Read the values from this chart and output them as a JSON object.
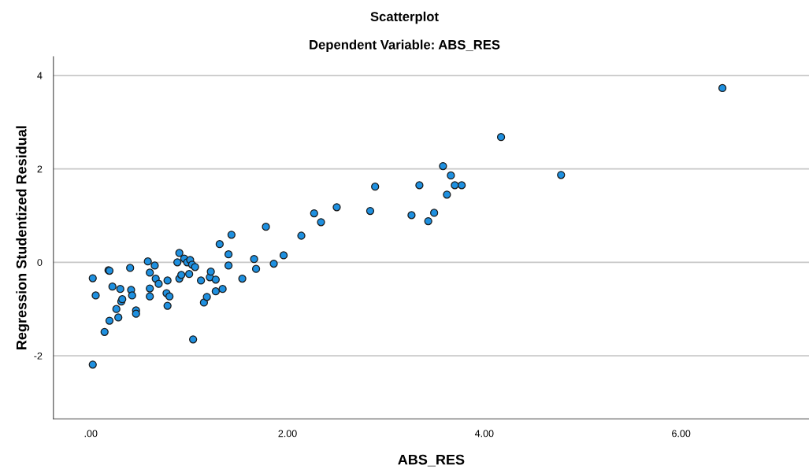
{
  "chart_data": {
    "type": "scatter",
    "title": "Scatterplot",
    "subtitle": "Dependent Variable: ABS_RES",
    "xlabel": "ABS_RES",
    "ylabel": "Regression Studentized Residual",
    "marker": "circle",
    "grid": "y",
    "xlim": [
      -0.38,
      7.3
    ],
    "ylim": [
      -3.35,
      4.4
    ],
    "xticks": [
      {
        "value": 0,
        "label": ".00"
      },
      {
        "value": 2,
        "label": "2.00"
      },
      {
        "value": 4,
        "label": "4.00"
      },
      {
        "value": 6,
        "label": "6.00"
      }
    ],
    "yticks": [
      -2,
      0,
      2,
      4
    ],
    "series": [
      {
        "color": "#1e90e0",
        "x": [
          0.02,
          0.02,
          0.05,
          0.14,
          0.19,
          0.18,
          0.19,
          0.22,
          0.26,
          0.28,
          0.3,
          0.31,
          0.32,
          0.4,
          0.41,
          0.42,
          0.46,
          0.46,
          0.58,
          0.6,
          0.6,
          0.6,
          0.65,
          0.66,
          0.69,
          0.77,
          0.78,
          0.78,
          0.8,
          0.88,
          0.9,
          0.9,
          0.92,
          0.95,
          0.98,
          1.0,
          1.01,
          1.03,
          1.06,
          1.04,
          1.12,
          1.15,
          1.18,
          1.21,
          1.22,
          1.27,
          1.27,
          1.31,
          1.34,
          1.4,
          1.4,
          1.43,
          1.54,
          1.66,
          1.68,
          1.78,
          1.86,
          1.96,
          2.14,
          2.27,
          2.34,
          2.5,
          2.84,
          2.89,
          3.26,
          3.34,
          3.43,
          3.49,
          3.58,
          3.62,
          3.66,
          3.7,
          3.77,
          4.17,
          4.78,
          6.42
        ],
        "values": [
          -2.19,
          -0.34,
          -0.71,
          -1.49,
          -1.25,
          -0.17,
          -0.18,
          -0.52,
          -1.0,
          -1.18,
          -0.57,
          -0.84,
          -0.79,
          -0.12,
          -0.59,
          -0.71,
          -1.03,
          -1.1,
          0.02,
          -0.22,
          -0.56,
          -0.73,
          -0.07,
          -0.35,
          -0.46,
          -0.66,
          -0.39,
          -0.93,
          -0.73,
          0.0,
          0.2,
          -0.35,
          -0.27,
          0.08,
          0.0,
          -0.25,
          0.05,
          -0.05,
          -0.1,
          -1.65,
          -0.39,
          -0.86,
          -0.74,
          -0.32,
          -0.2,
          -0.62,
          -0.37,
          0.39,
          -0.57,
          -0.07,
          0.17,
          0.59,
          -0.35,
          0.07,
          -0.14,
          0.76,
          -0.03,
          0.15,
          0.57,
          1.05,
          0.86,
          1.18,
          1.1,
          1.62,
          1.01,
          1.65,
          0.88,
          1.06,
          2.06,
          1.45,
          1.86,
          1.65,
          1.65,
          2.68,
          1.87,
          3.73
        ]
      }
    ]
  }
}
